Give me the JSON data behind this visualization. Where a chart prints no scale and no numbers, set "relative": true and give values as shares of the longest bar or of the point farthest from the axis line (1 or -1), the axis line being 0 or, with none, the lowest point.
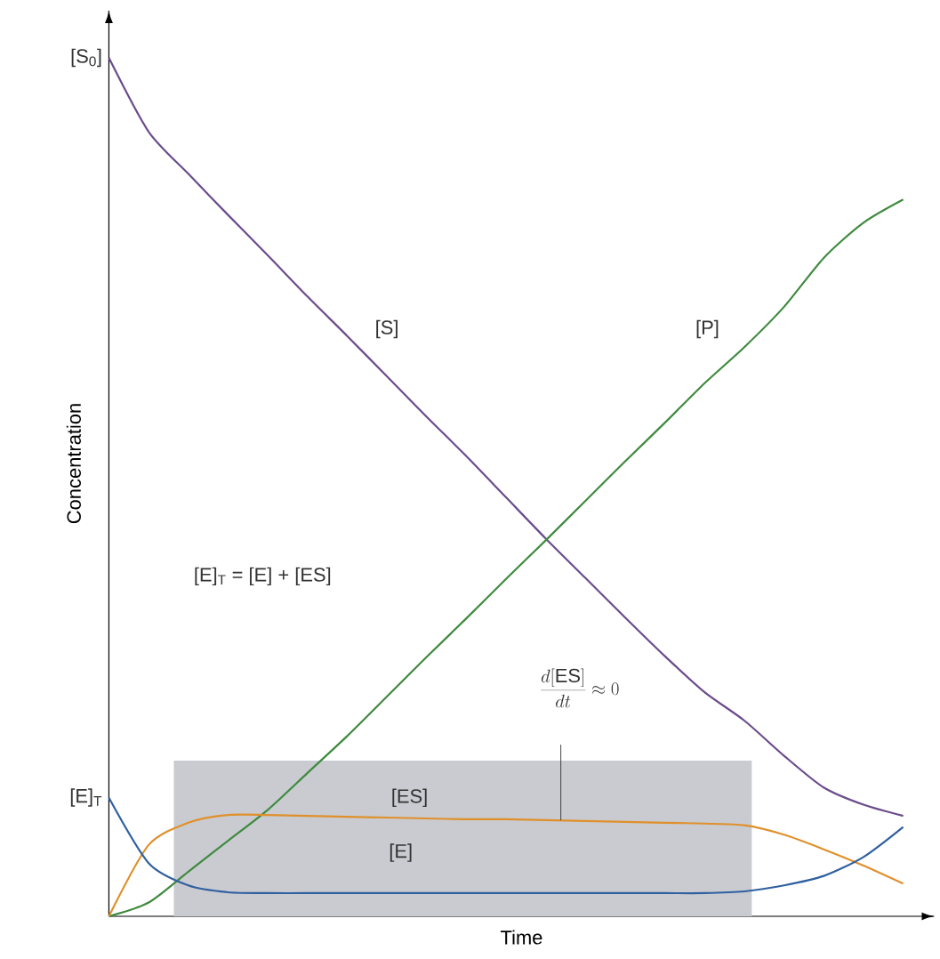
{
  "chart_data": {
    "type": "line",
    "relative": true,
    "xlabel": "Time",
    "ylabel": "Concentration",
    "categories": [
      null,
      null,
      null,
      null,
      null,
      null,
      null,
      null,
      null,
      null,
      null,
      null,
      null,
      null,
      null,
      null,
      null,
      null,
      null,
      null,
      null
    ],
    "series": [
      {
        "name": "[S]",
        "color": "#6a4c8c",
        "values": [
          1.0,
          0.914,
          0.865,
          0.817,
          0.77,
          0.722,
          0.676,
          0.629,
          0.582,
          0.536,
          0.488,
          0.44,
          0.394,
          0.348,
          0.303,
          0.261,
          0.228,
          0.187,
          0.15,
          0.13,
          0.117
        ]
      },
      {
        "name": "[P]",
        "color": "#3f8a3f",
        "values": [
          0,
          0.016,
          0.052,
          0.088,
          0.124,
          0.167,
          0.21,
          0.256,
          0.302,
          0.347,
          0.393,
          0.438,
          0.484,
          0.53,
          0.575,
          0.621,
          0.663,
          0.71,
          0.767,
          0.808,
          0.835
        ]
      },
      {
        "name": "[ES]",
        "color": "#e0902a",
        "values": [
          0,
          0.083,
          0.109,
          0.118,
          0.118,
          0.117,
          0.116,
          0.115,
          0.114,
          0.113,
          0.113,
          0.112,
          0.111,
          0.11,
          0.109,
          0.108,
          0.106,
          0.095,
          0.078,
          0.059,
          0.038
        ]
      },
      {
        "name": "[E]",
        "color": "#3060a0",
        "values": [
          0.138,
          0.062,
          0.036,
          0.028,
          0.027,
          0.027,
          0.027,
          0.027,
          0.027,
          0.027,
          0.027,
          0.027,
          0.027,
          0.027,
          0.027,
          0.027,
          0.029,
          0.036,
          0.047,
          0.069,
          0.104
        ]
      }
    ],
    "annotations": [
      "[E]$_{T}$ = [E] + [ES]",
      "\\frac{d[\\mathrm{ES}]}{dt} \\approx 0",
      "[S$_{0}$]",
      "[E]$_{T}$"
    ]
  }
}
